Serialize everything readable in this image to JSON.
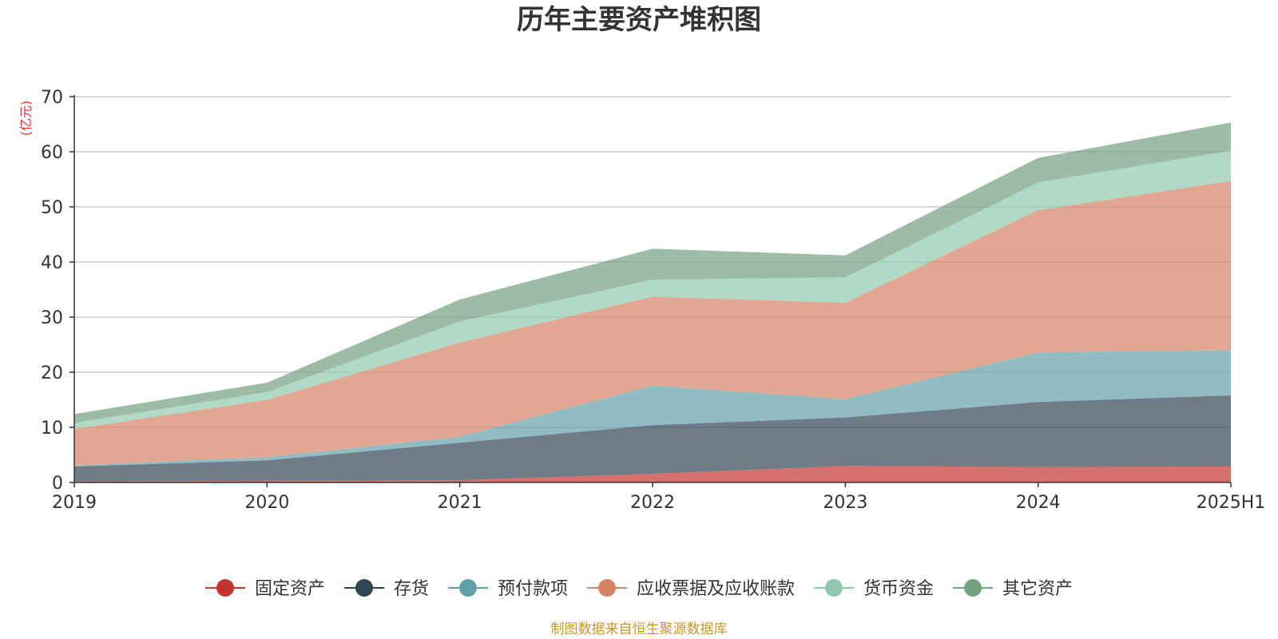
{
  "chart_data": {
    "type": "area",
    "stacked": true,
    "title": "历年主要资产堆积图",
    "unit_label": "(亿元)",
    "source": "制图数据来自恒生聚源数据库",
    "categories": [
      "2019",
      "2020",
      "2021",
      "2022",
      "2023",
      "2024",
      "2025H1"
    ],
    "ylim": [
      0,
      70
    ],
    "yticks": [
      0,
      10,
      20,
      30,
      40,
      50,
      60,
      70
    ],
    "grid": true,
    "legend_position": "bottom",
    "series": [
      {
        "name": "固定资产",
        "color": "#c23531",
        "values": [
          0.2,
          0.3,
          0.4,
          1.6,
          3.0,
          2.8,
          2.9
        ]
      },
      {
        "name": "存货",
        "color": "#2f4554",
        "values": [
          2.7,
          3.7,
          6.8,
          8.8,
          8.8,
          11.8,
          12.9
        ]
      },
      {
        "name": "预付款项",
        "color": "#61a0a8",
        "values": [
          0.2,
          0.6,
          1.1,
          7.2,
          3.3,
          9.0,
          8.2
        ]
      },
      {
        "name": "应收票据及应收账款",
        "color": "#d48265",
        "values": [
          6.6,
          10.4,
          17.1,
          16.1,
          17.5,
          25.8,
          30.7
        ]
      },
      {
        "name": "货币资金",
        "color": "#91c7ae",
        "values": [
          1.1,
          1.4,
          3.8,
          3.1,
          4.6,
          5.0,
          5.5
        ]
      },
      {
        "name": "其它资产",
        "color": "#749f83",
        "values": [
          1.6,
          1.7,
          4.0,
          5.6,
          4.0,
          4.5,
          5.1
        ]
      }
    ]
  }
}
